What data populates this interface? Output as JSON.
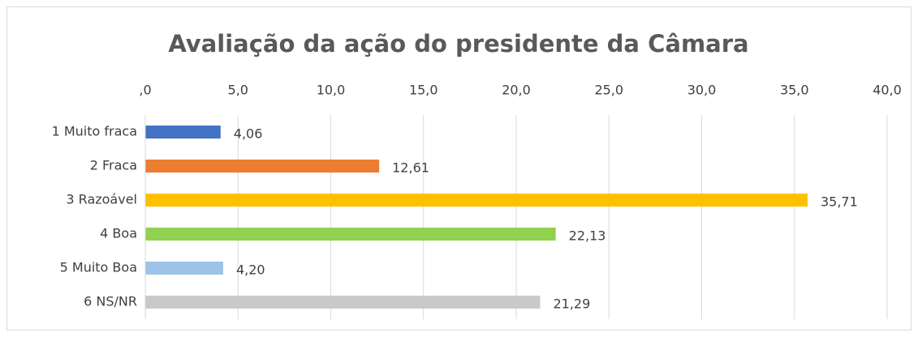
{
  "chart_data": {
    "type": "bar",
    "orientation": "horizontal",
    "title": "Avaliação da ação do presidente da Câmara",
    "categories": [
      "1 Muito fraca",
      "2 Fraca",
      "3 Razoável",
      "4 Boa",
      "5 Muito Boa",
      "6 NS/NR"
    ],
    "values": [
      4.06,
      12.61,
      35.71,
      22.13,
      4.2,
      21.29
    ],
    "value_labels": [
      "4,06",
      "12,61",
      "35,71",
      "22,13",
      "4,20",
      "21,29"
    ],
    "colors": [
      "#4472c4",
      "#ed7d31",
      "#ffc000",
      "#92d050",
      "#9dc3e6",
      "#c9c9c9"
    ],
    "xlim": [
      0,
      40
    ],
    "xticks": [
      {
        "value": 0,
        "label": ",0"
      },
      {
        "value": 5,
        "label": "5,0"
      },
      {
        "value": 10,
        "label": "10,0"
      },
      {
        "value": 15,
        "label": "15,0"
      },
      {
        "value": 20,
        "label": "20,0"
      },
      {
        "value": 25,
        "label": "25,0"
      },
      {
        "value": 30,
        "label": "30,0"
      },
      {
        "value": 35,
        "label": "35,0"
      },
      {
        "value": 40,
        "label": "40,0"
      }
    ],
    "grid": true
  }
}
